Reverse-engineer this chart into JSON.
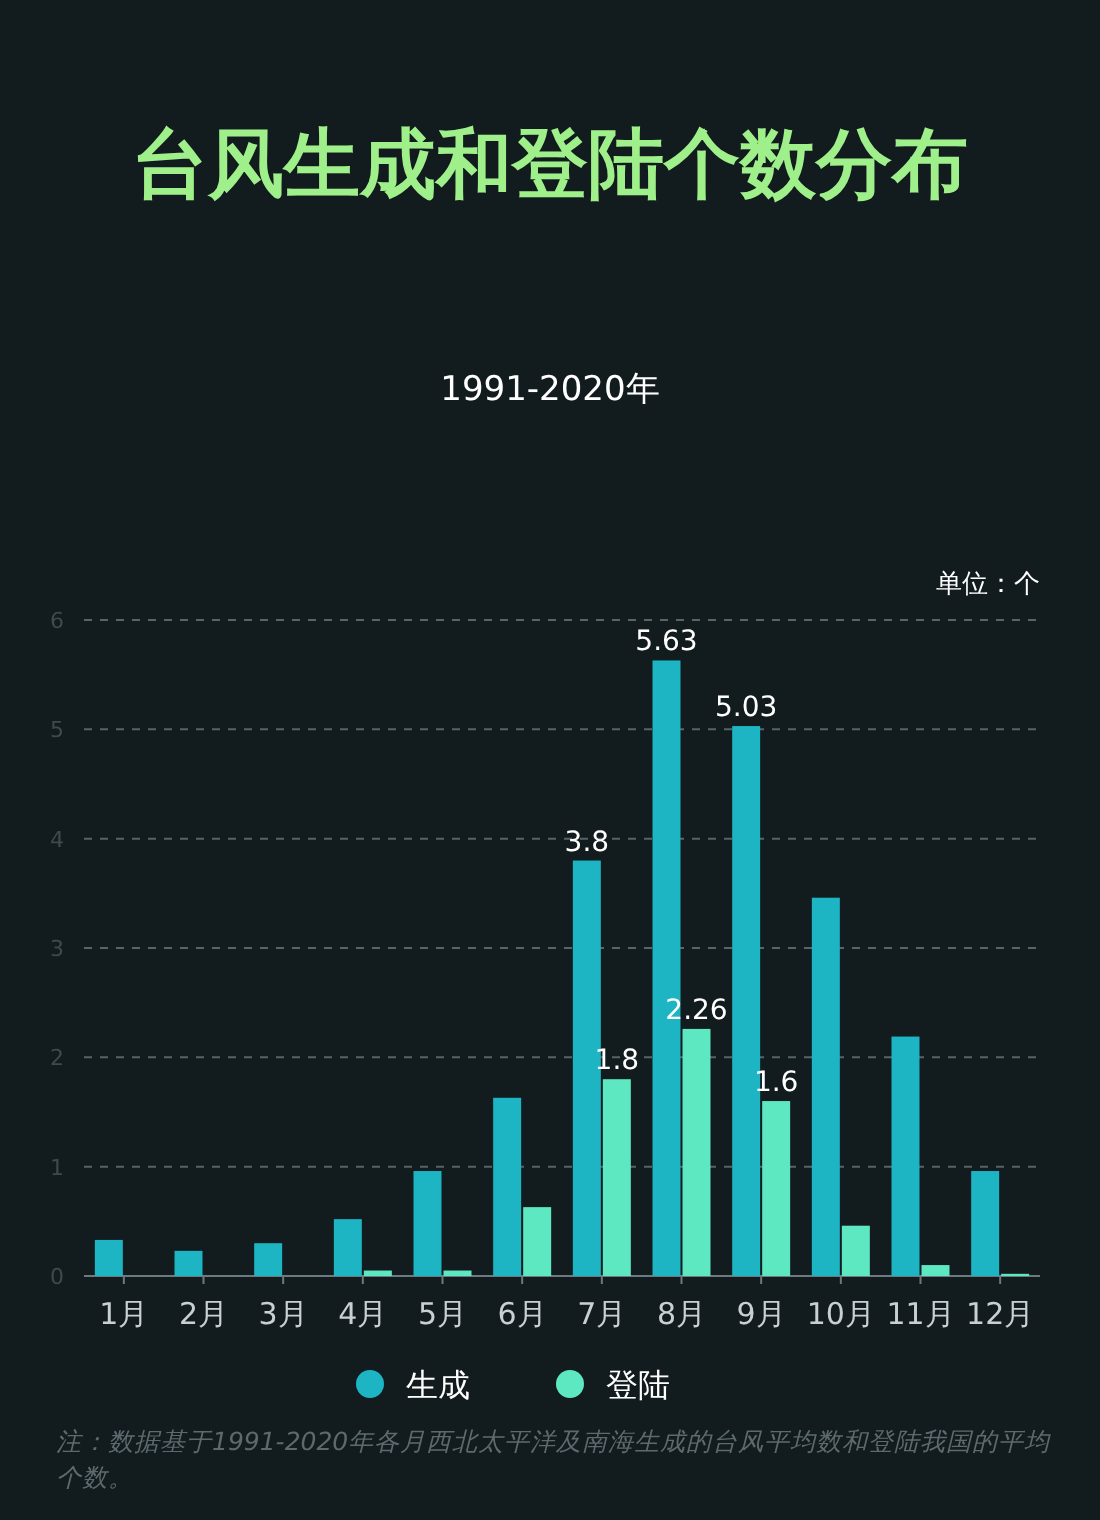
{
  "chart_data": {
    "type": "bar",
    "title": "台风生成和登陆个数分布",
    "subtitle": "1991-2020年",
    "categories": [
      "1月",
      "2月",
      "3月",
      "4月",
      "5月",
      "6月",
      "7月",
      "8月",
      "9月",
      "10月",
      "11月",
      "12月"
    ],
    "series": [
      {
        "name": "生成",
        "color": "#1db4c4",
        "values": [
          0.33,
          0.23,
          0.3,
          0.52,
          0.96,
          1.63,
          3.8,
          5.63,
          5.03,
          3.46,
          2.19,
          0.96
        ],
        "value_labels": [
          null,
          null,
          null,
          null,
          null,
          null,
          "3.8",
          "5.63",
          "5.03",
          null,
          null,
          null
        ]
      },
      {
        "name": "登陆",
        "color": "#5ee8c2",
        "values": [
          0,
          0,
          0,
          0.05,
          0.05,
          0.63,
          1.8,
          2.26,
          1.6,
          0.46,
          0.1,
          0.02
        ],
        "value_labels": [
          null,
          null,
          null,
          null,
          null,
          null,
          "1.8",
          "2.26",
          "1.6",
          null,
          null,
          null
        ]
      }
    ],
    "ylim": [
      0,
      6
    ],
    "yticks": [
      0,
      1,
      2,
      3,
      4,
      5,
      6
    ],
    "grid": "y",
    "legend": "bottom",
    "annotations": [
      "单位：个",
      "注：数据基于1991-2020年各月西北太平洋及南海生成的台风平均数和登陆我国的平均个数。"
    ]
  }
}
